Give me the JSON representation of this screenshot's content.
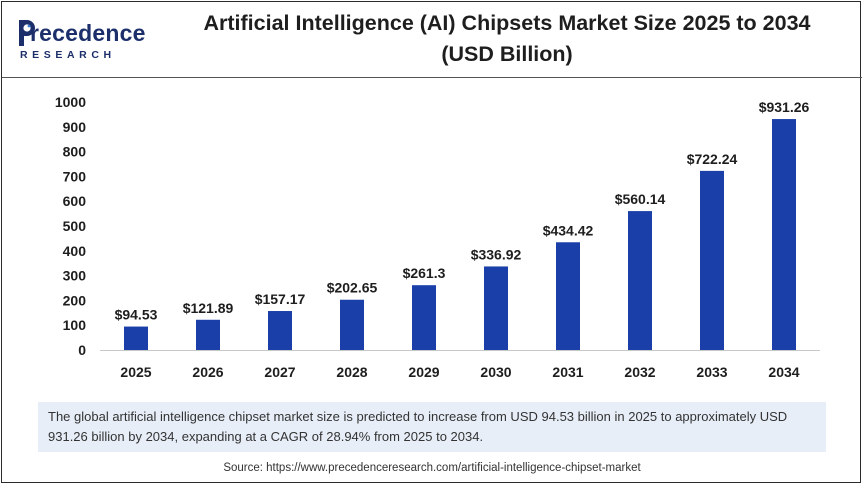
{
  "header": {
    "logo_word": "recedence",
    "logo_sub": "RESEARCH",
    "title_line1": "Artificial Intelligence (AI) Chipsets Market Size 2025 to 2034",
    "title_line2": "(USD Billion)"
  },
  "chart_data": {
    "type": "bar",
    "categories": [
      "2025",
      "2026",
      "2027",
      "2028",
      "2029",
      "2030",
      "2031",
      "2032",
      "2033",
      "2034"
    ],
    "values": [
      94.53,
      121.89,
      157.17,
      202.65,
      261.3,
      336.92,
      434.42,
      560.14,
      722.24,
      931.26
    ],
    "data_labels": [
      "$94.53",
      "$121.89",
      "$157.17",
      "$202.65",
      "$261.3",
      "$336.92",
      "$434.42",
      "$560.14",
      "$722.24",
      "$931.26"
    ],
    "y_ticks": [
      0,
      100,
      200,
      300,
      400,
      500,
      600,
      700,
      800,
      900,
      1000
    ],
    "ylim": [
      0,
      1000
    ],
    "grid": false,
    "legend": "none",
    "bar_color": "#1a3fa8"
  },
  "caption": "The global artificial intelligence chipset market size is predicted to increase from USD 94.53 billion in 2025 to approximately USD 931.26 billion by 2034, expanding at a CAGR of 28.94% from 2025 to 2034.",
  "source": "Source: https://www.precedenceresearch.com/artificial-intelligence-chipset-market"
}
